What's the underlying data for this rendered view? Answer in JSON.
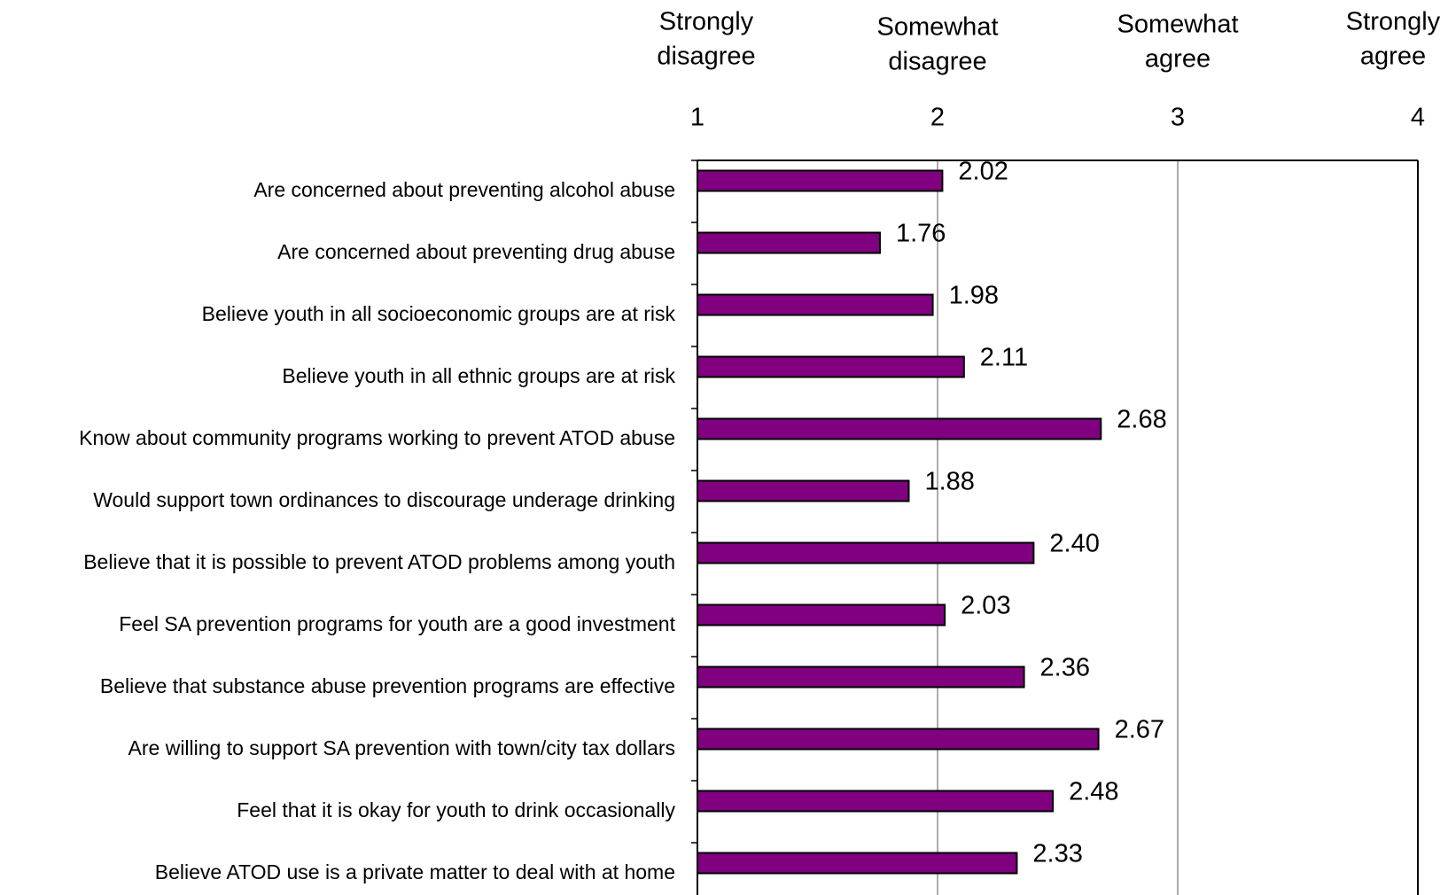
{
  "chart_data": {
    "type": "hbar",
    "categories": [
      "Are concerned about preventing alcohol abuse",
      "Are concerned about preventing drug abuse",
      "Believe youth in all socioeconomic groups are at risk",
      "Believe youth in all ethnic groups are at risk",
      "Know about community programs working to prevent ATOD abuse",
      "Would support town ordinances to discourage underage drinking",
      "Believe that it is possible to prevent ATOD problems among youth",
      "Feel SA prevention programs for youth are a good investment",
      "Believe that substance abuse prevention programs are effective",
      "Are willing to support SA prevention with town/city tax dollars",
      "Feel that it is okay for youth to drink occasionally",
      "Believe ATOD use is a private matter to deal with at home"
    ],
    "values": [
      2.02,
      1.76,
      1.98,
      2.11,
      2.68,
      1.88,
      2.4,
      2.03,
      2.36,
      2.67,
      2.48,
      2.33
    ],
    "value_labels": [
      "2.02",
      "1.76",
      "1.98",
      "2.11",
      "2.68",
      "1.88",
      "2.40",
      "2.03",
      "2.36",
      "2.67",
      "2.48",
      "2.33"
    ],
    "color": "#800080",
    "xlim": [
      1,
      4
    ],
    "xticks": [
      1,
      2,
      3,
      4
    ],
    "grid": true,
    "scale_labels": [
      [
        "Strongly",
        "disagree"
      ],
      [
        "Somewhat",
        "disagree"
      ],
      [
        "Somewhat",
        "agree"
      ],
      [
        "Strongly",
        "agree"
      ]
    ]
  }
}
